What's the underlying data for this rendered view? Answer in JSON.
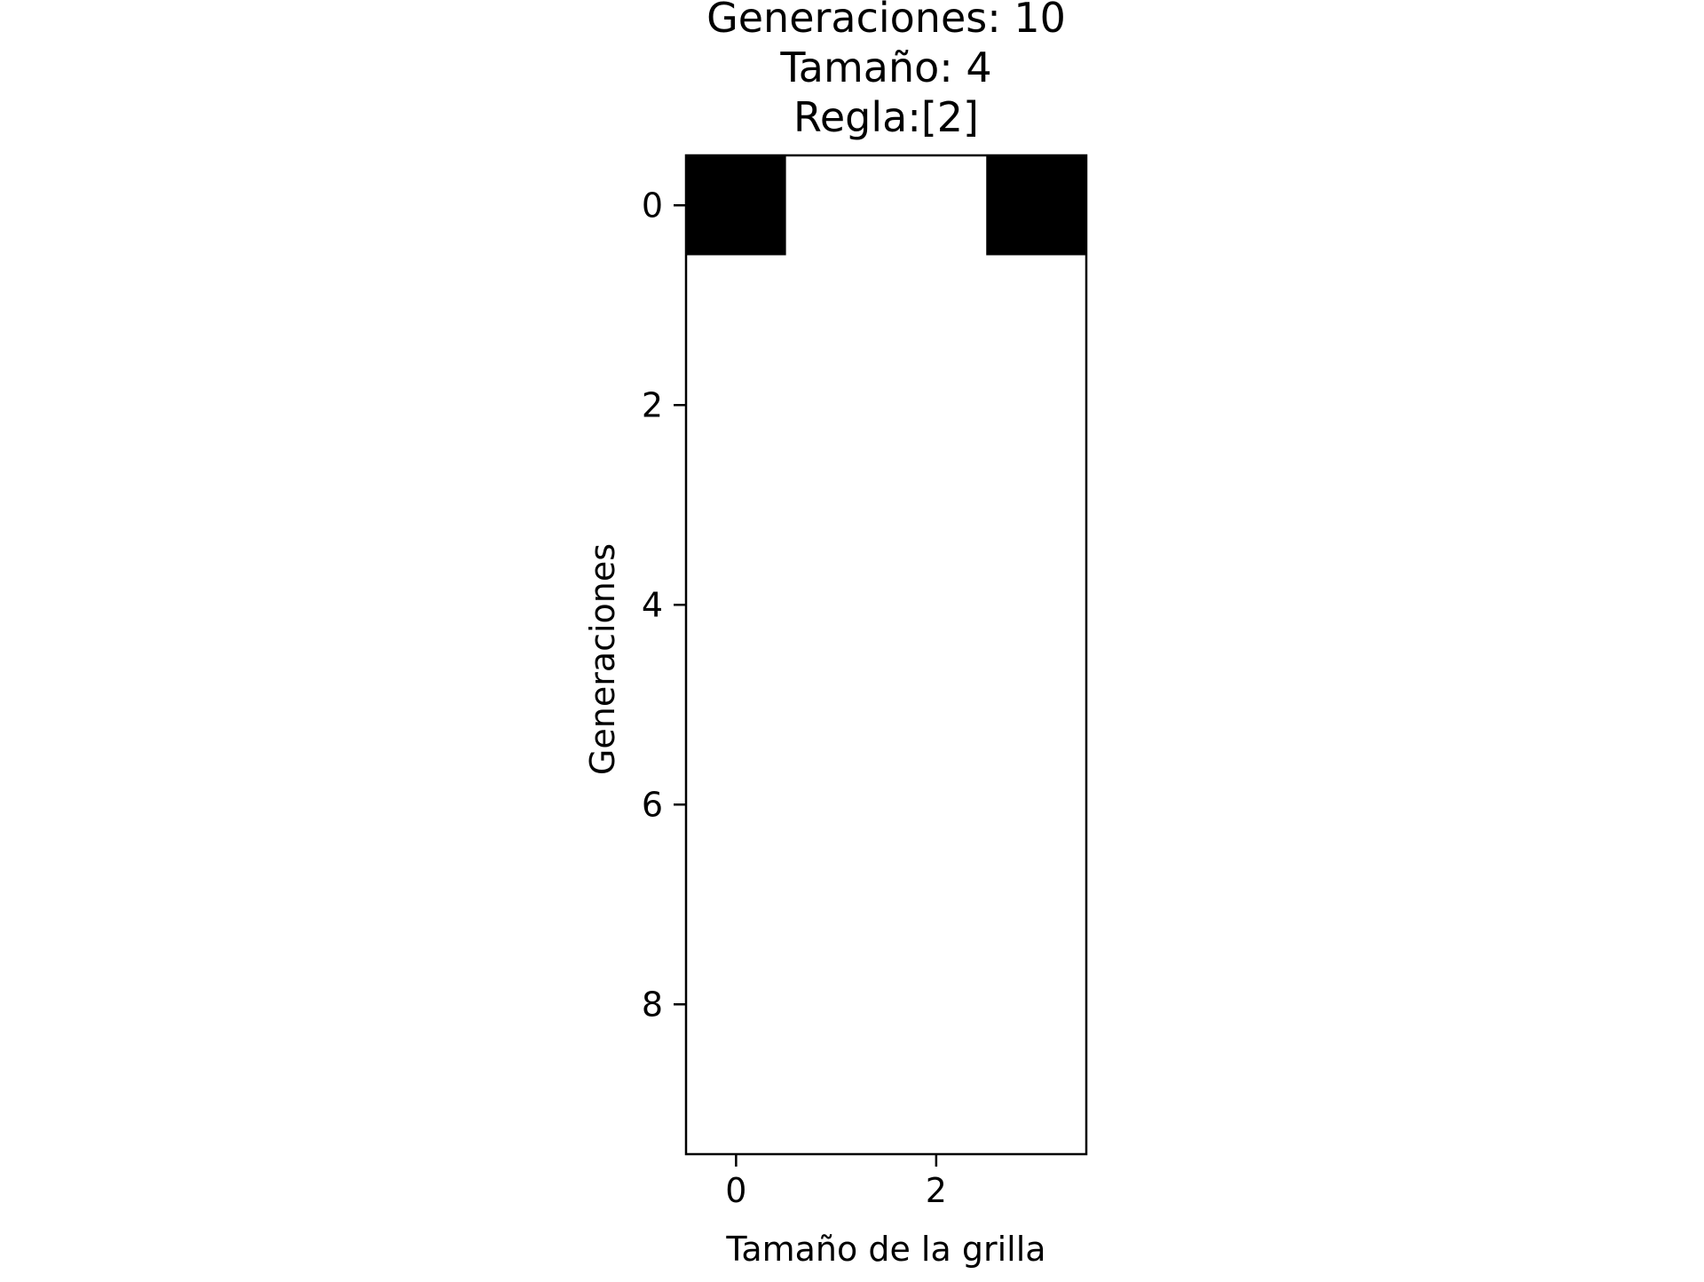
{
  "chart_data": {
    "type": "heatmap",
    "title_lines": [
      "Generaciones: 10",
      "Tamaño: 4",
      "Regla:[2]"
    ],
    "xlabel": "Tamaño de la grilla",
    "ylabel": "Generaciones",
    "xlim": [
      -0.5,
      3.5
    ],
    "ylim": [
      9.5,
      -0.5
    ],
    "x_ticks": [
      0,
      2
    ],
    "y_ticks": [
      0,
      2,
      4,
      6,
      8
    ],
    "grid": false,
    "colormap": "binary",
    "colors": {
      "on": "#000000",
      "off": "#ffffff"
    },
    "rows": 10,
    "cols": 4,
    "values": [
      [
        1,
        0,
        0,
        1
      ],
      [
        0,
        0,
        0,
        0
      ],
      [
        0,
        0,
        0,
        0
      ],
      [
        0,
        0,
        0,
        0
      ],
      [
        0,
        0,
        0,
        0
      ],
      [
        0,
        0,
        0,
        0
      ],
      [
        0,
        0,
        0,
        0
      ],
      [
        0,
        0,
        0,
        0
      ],
      [
        0,
        0,
        0,
        0
      ],
      [
        0,
        0,
        0,
        0
      ]
    ]
  }
}
